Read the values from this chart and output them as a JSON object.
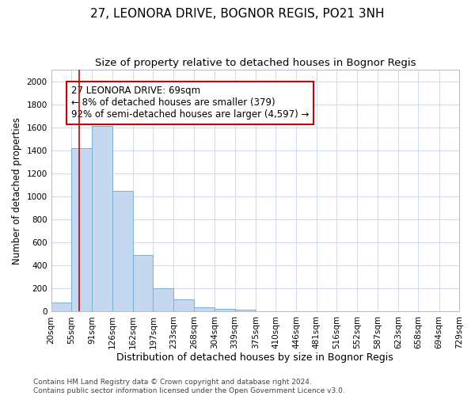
{
  "title": "27, LEONORA DRIVE, BOGNOR REGIS, PO21 3NH",
  "subtitle": "Size of property relative to detached houses in Bognor Regis",
  "xlabel": "Distribution of detached houses by size in Bognor Regis",
  "ylabel": "Number of detached properties",
  "footer_line1": "Contains HM Land Registry data © Crown copyright and database right 2024.",
  "footer_line2": "Contains public sector information licensed under the Open Government Licence v3.0.",
  "bar_edges": [
    20,
    55,
    91,
    126,
    162,
    197,
    233,
    268,
    304,
    339,
    375,
    410,
    446,
    481,
    516,
    552,
    587,
    623,
    658,
    694,
    729
  ],
  "bar_heights": [
    80,
    1420,
    1610,
    1050,
    490,
    200,
    105,
    40,
    20,
    15,
    5,
    0,
    0,
    0,
    0,
    0,
    0,
    0,
    0,
    0
  ],
  "bar_color": "#c5d8f0",
  "bar_edge_color": "#7aafd4",
  "red_line_x": 69,
  "annotation_text": "27 LEONORA DRIVE: 69sqm\n← 8% of detached houses are smaller (379)\n92% of semi-detached houses are larger (4,597) →",
  "annotation_box_color": "#ffffff",
  "annotation_box_edge": "#cc0000",
  "red_line_color": "#cc0000",
  "ylim": [
    0,
    2100
  ],
  "yticks": [
    0,
    200,
    400,
    600,
    800,
    1000,
    1200,
    1400,
    1600,
    1800,
    2000
  ],
  "title_fontsize": 11,
  "subtitle_fontsize": 9.5,
  "xlabel_fontsize": 9,
  "ylabel_fontsize": 8.5,
  "tick_fontsize": 7.5,
  "annotation_fontsize": 8.5,
  "footer_fontsize": 6.5,
  "background_color": "#ffffff",
  "grid_color": "#c8d4e8"
}
